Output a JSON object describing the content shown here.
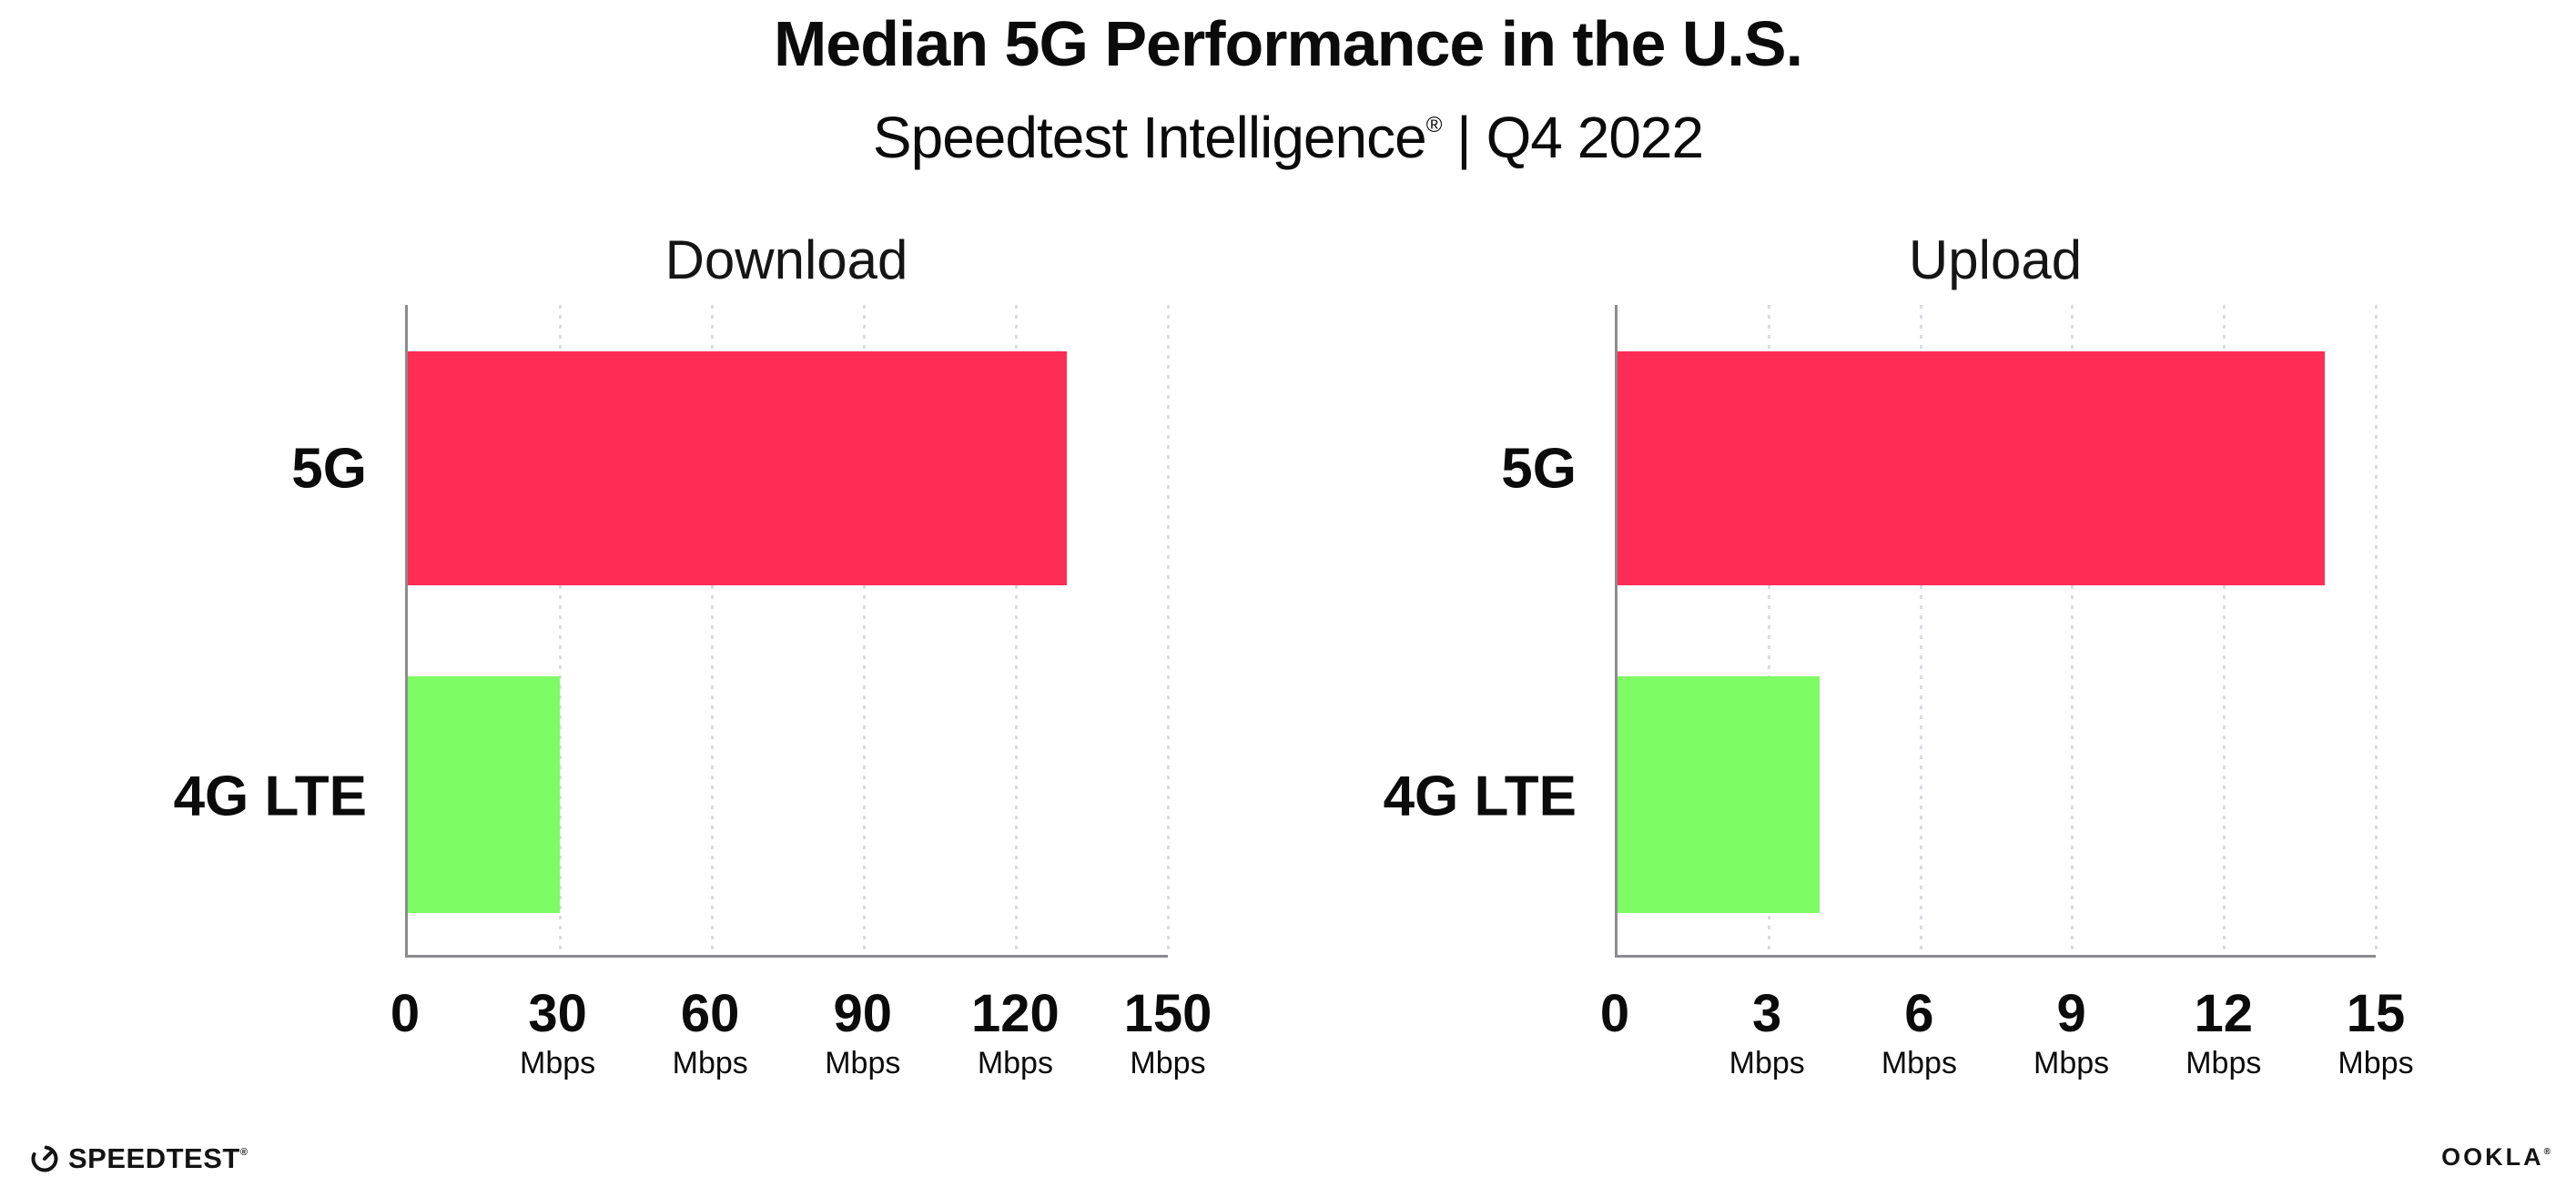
{
  "header": {
    "title": "Median 5G Performance in the U.S.",
    "subtitle": {
      "brand": "Speedtest Intelligence",
      "registered": "®",
      "rest": " | Q4 2022"
    }
  },
  "colors": {
    "bar_5g": "#FF2D55",
    "bar_4g_lte": "#7DFC63",
    "axis_line": "#8B8B90",
    "gridline_dots": "#DADAE2",
    "text": "#0B0B0C",
    "background": "#FFFFFF"
  },
  "chart_data": [
    {
      "type": "bar",
      "orientation": "horizontal",
      "title": "Download",
      "categories": [
        "5G",
        "4G LTE"
      ],
      "values": [
        130,
        30
      ],
      "unit": "Mbps",
      "xlim": [
        0,
        150
      ],
      "xticks": [
        0,
        30,
        60,
        90,
        120,
        150
      ],
      "bar_colors": [
        "#FF2D55",
        "#7DFC63"
      ],
      "grid": "dotted-vertical",
      "legend": "none"
    },
    {
      "type": "bar",
      "orientation": "horizontal",
      "title": "Upload",
      "categories": [
        "5G",
        "4G LTE"
      ],
      "values": [
        14,
        4
      ],
      "unit": "Mbps",
      "xlim": [
        0,
        15
      ],
      "xticks": [
        0,
        3,
        6,
        9,
        12,
        15
      ],
      "bar_colors": [
        "#FF2D55",
        "#7DFC63"
      ],
      "grid": "dotted-vertical",
      "legend": "none"
    }
  ],
  "footer": {
    "speedtest": {
      "label": "SPEEDTEST",
      "registered": "®"
    },
    "ookla": {
      "label": "OOKLA",
      "registered": "®"
    }
  }
}
